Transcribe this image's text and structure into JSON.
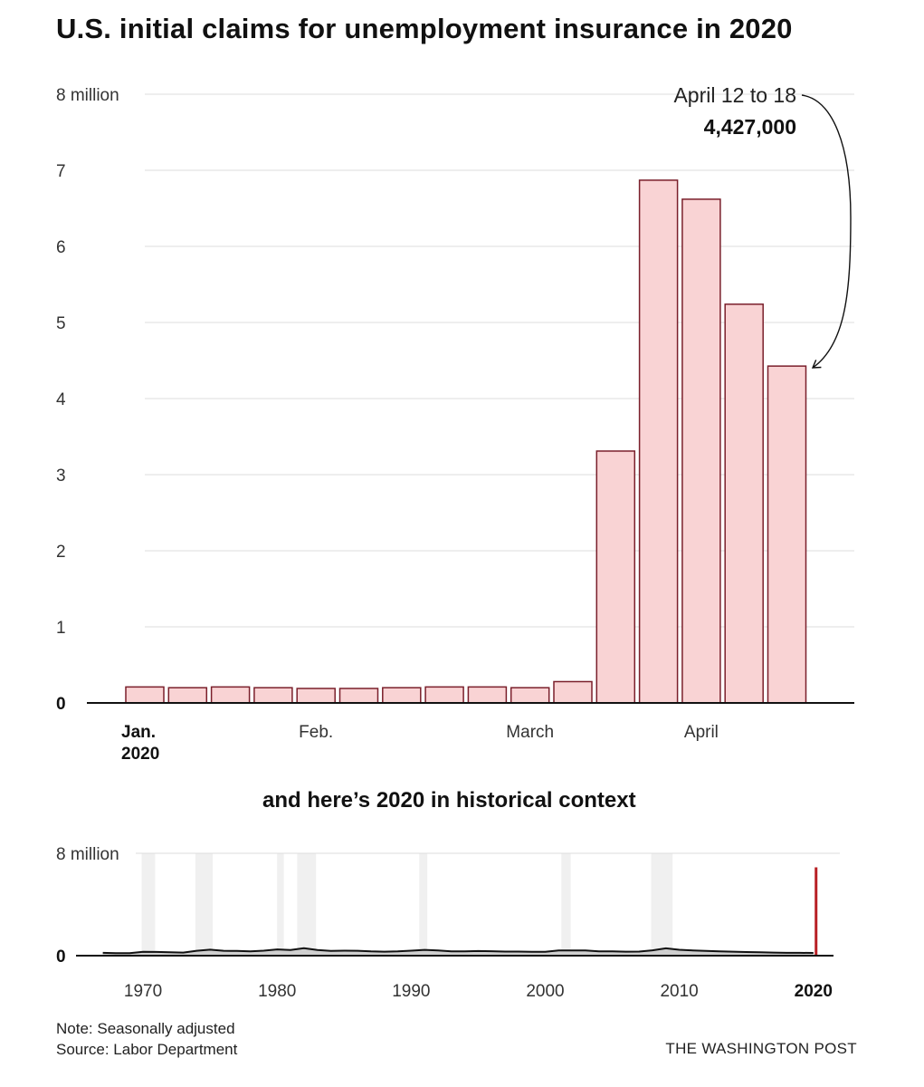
{
  "title": "U.S. initial claims for unemployment insurance in 2020",
  "chart_data": [
    {
      "type": "bar",
      "title": "U.S. initial claims for unemployment insurance in 2020",
      "ylabel": "",
      "xlabel": "",
      "ylim": [
        0,
        8
      ],
      "yticks": [
        {
          "value": 0,
          "label": "0"
        },
        {
          "value": 1,
          "label": "1"
        },
        {
          "value": 2,
          "label": "2"
        },
        {
          "value": 3,
          "label": "3"
        },
        {
          "value": 4,
          "label": "4"
        },
        {
          "value": 5,
          "label": "5"
        },
        {
          "value": 6,
          "label": "6"
        },
        {
          "value": 7,
          "label": "7"
        },
        {
          "value": 8,
          "label": "8 million"
        }
      ],
      "xticks": [
        {
          "index": 0,
          "label": "Jan.",
          "label2": "2020",
          "bold": true
        },
        {
          "index": 4,
          "label": "Feb."
        },
        {
          "index": 9,
          "label": "March"
        },
        {
          "index": 13,
          "label": "April"
        }
      ],
      "values": [
        0.21,
        0.2,
        0.21,
        0.2,
        0.19,
        0.19,
        0.2,
        0.21,
        0.21,
        0.2,
        0.28,
        3.31,
        6.87,
        6.62,
        5.24,
        4.427
      ],
      "annotation": {
        "index": 15,
        "label": "April 12 to 18",
        "value": "4,427,000"
      }
    },
    {
      "type": "area",
      "title": "and here’s 2020 in historical context",
      "ylim": [
        0,
        8
      ],
      "yticks": [
        {
          "value": 0,
          "label": "0"
        },
        {
          "value": 8,
          "label": "8 million"
        }
      ],
      "xlim": [
        1965,
        2021.5
      ],
      "xticks": [
        {
          "value": 1970,
          "label": "1970"
        },
        {
          "value": 1980,
          "label": "1980"
        },
        {
          "value": 1990,
          "label": "1990"
        },
        {
          "value": 2000,
          "label": "2000"
        },
        {
          "value": 2010,
          "label": "2010"
        },
        {
          "value": 2020,
          "label": "2020",
          "bold": true
        }
      ],
      "recessions": [
        [
          1969.9,
          1970.9
        ],
        [
          1973.9,
          1975.2
        ],
        [
          1980.0,
          1980.5
        ],
        [
          1981.5,
          1982.9
        ],
        [
          1990.6,
          1991.2
        ],
        [
          2001.2,
          2001.9
        ],
        [
          2007.9,
          2009.5
        ]
      ],
      "x": [
        1967,
        1968,
        1969,
        1970,
        1971,
        1972,
        1973,
        1974,
        1975,
        1976,
        1977,
        1978,
        1979,
        1980,
        1981,
        1982,
        1983,
        1984,
        1985,
        1986,
        1987,
        1988,
        1989,
        1990,
        1991,
        1992,
        1993,
        1994,
        1995,
        1996,
        1997,
        1998,
        1999,
        2000,
        2001,
        2002,
        2003,
        2004,
        2005,
        2006,
        2007,
        2008,
        2009,
        2010,
        2011,
        2012,
        2013,
        2014,
        2015,
        2016,
        2017,
        2018,
        2019,
        2020.0
      ],
      "y": [
        0.22,
        0.19,
        0.2,
        0.3,
        0.29,
        0.26,
        0.24,
        0.38,
        0.47,
        0.38,
        0.37,
        0.34,
        0.39,
        0.49,
        0.44,
        0.58,
        0.44,
        0.37,
        0.39,
        0.38,
        0.33,
        0.31,
        0.33,
        0.39,
        0.45,
        0.41,
        0.34,
        0.34,
        0.36,
        0.35,
        0.32,
        0.32,
        0.3,
        0.3,
        0.41,
        0.4,
        0.4,
        0.34,
        0.33,
        0.31,
        0.32,
        0.42,
        0.57,
        0.46,
        0.41,
        0.37,
        0.34,
        0.31,
        0.28,
        0.26,
        0.24,
        0.22,
        0.22,
        0.21
      ],
      "spike": {
        "x": 2020.2,
        "y": 6.9
      }
    }
  ],
  "context_label": "and here’s 2020 in historical context",
  "note": "Note: Seasonally adjusted",
  "source": "Source: Labor Department",
  "credit": "THE WASHINGTON POST",
  "colors": {
    "bar_fill": "#f9d3d4",
    "bar_stroke": "#7a1f2b",
    "spike": "#b81f24",
    "area_fill": "#cfcfcf",
    "recession": "#f0f0f0"
  }
}
